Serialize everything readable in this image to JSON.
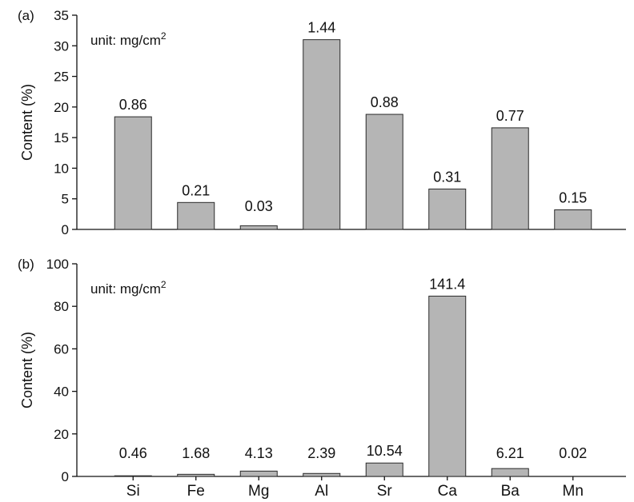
{
  "chart_data": [
    {
      "type": "bar",
      "panel_label": "(a)",
      "unit_note": "unit: mg/cm",
      "unit_superscript": "2",
      "ylabel": "Content (%)",
      "xlabel": "",
      "ylim": [
        0,
        35
      ],
      "yticks": [
        0,
        5,
        10,
        15,
        20,
        25,
        30,
        35
      ],
      "categories": [
        "Si",
        "Fe",
        "Mg",
        "Al",
        "Sr",
        "Ca",
        "Ba",
        "Mn"
      ],
      "values": [
        18.4,
        4.4,
        0.6,
        31.0,
        18.8,
        6.6,
        16.6,
        3.2
      ],
      "data_labels": [
        "0.86",
        "0.21",
        "0.03",
        "1.44",
        "0.88",
        "0.31",
        "0.77",
        "0.15"
      ],
      "show_category_labels": false
    },
    {
      "type": "bar",
      "panel_label": "(b)",
      "unit_note": "unit: mg/cm",
      "unit_superscript": "2",
      "ylabel": "Content (%)",
      "xlabel": "",
      "ylim": [
        0,
        100
      ],
      "yticks": [
        0,
        20,
        40,
        60,
        80,
        100
      ],
      "categories": [
        "Si",
        "Fe",
        "Mg",
        "Al",
        "Sr",
        "Ca",
        "Ba",
        "Mn"
      ],
      "values": [
        0.3,
        1.0,
        2.5,
        1.4,
        6.3,
        84.8,
        3.7,
        0.0
      ],
      "data_labels": [
        "0.46",
        "1.68",
        "4.13",
        "2.39",
        "10.54",
        "141.4",
        "6.21",
        "0.02"
      ],
      "show_category_labels": true
    }
  ]
}
